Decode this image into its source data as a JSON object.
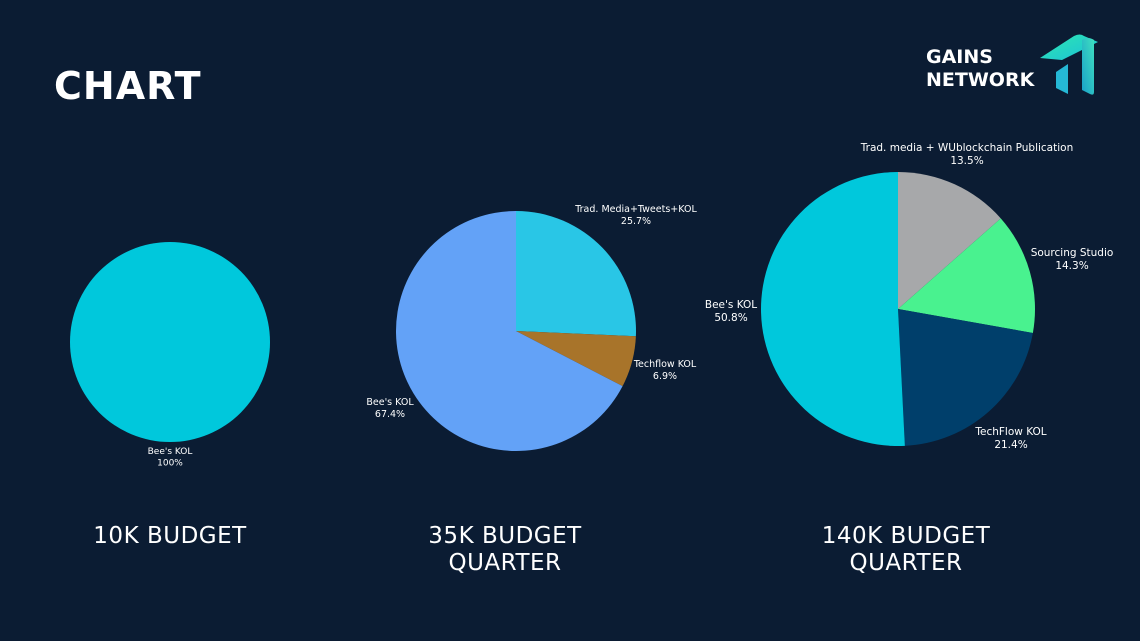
{
  "slide": {
    "title": "CHART",
    "logo": {
      "line1": "GAINS",
      "line2": "NETWORK",
      "mark": "gains-arrow-logo"
    }
  },
  "chart_data": [
    {
      "type": "pie",
      "caption": [
        "10K BUDGET"
      ],
      "slices": [
        {
          "label": "Bee's KOL",
          "value": 100,
          "display": "100%",
          "color": "#00c8dc"
        }
      ]
    },
    {
      "type": "pie",
      "caption": [
        "35K BUDGET",
        "QUARTER"
      ],
      "slices": [
        {
          "label": "Trad. Media+Tweets+KOL",
          "value": 25.7,
          "display": "25.7%",
          "color": "#29c6e6"
        },
        {
          "label": "Techflow KOL",
          "value": 6.9,
          "display": "6.9%",
          "color": "#a8742a"
        },
        {
          "label": "Bee's KOL",
          "value": 67.4,
          "display": "67.4%",
          "color": "#63a2f7"
        }
      ]
    },
    {
      "type": "pie",
      "caption": [
        "140K BUDGET",
        "QUARTER"
      ],
      "slices": [
        {
          "label": "Trad. media + WUblockchain Publication",
          "value": 13.5,
          "display": "13.5%",
          "color": "#a7a8aa"
        },
        {
          "label": "Sourcing Studio",
          "value": 14.3,
          "display": "14.3%",
          "color": "#49f28f"
        },
        {
          "label": "TechFlow KOL",
          "value": 21.4,
          "display": "21.4%",
          "color": "#003f6b"
        },
        {
          "label": "Bee's KOL",
          "value": 50.8,
          "display": "50.8%",
          "color": "#00c8dc"
        }
      ]
    }
  ]
}
